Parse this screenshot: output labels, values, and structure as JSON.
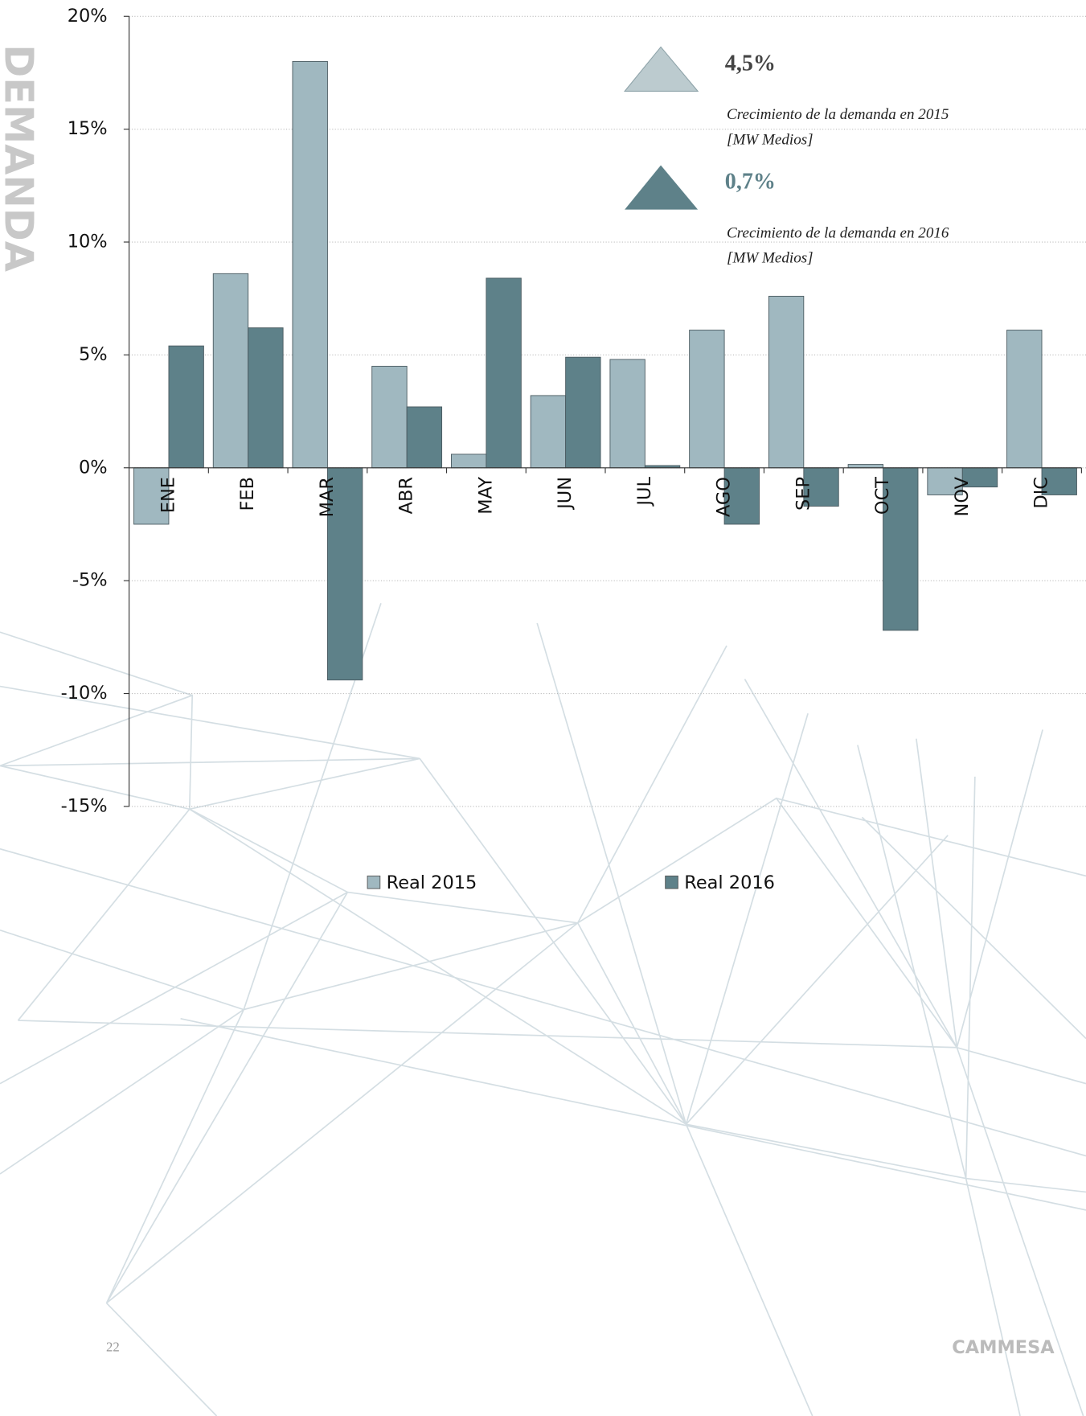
{
  "chart_data": {
    "type": "bar",
    "categories": [
      "ENE",
      "FEB",
      "MAR",
      "ABR",
      "MAY",
      "JUN",
      "JUL",
      "AGO",
      "SEP",
      "OCT",
      "NOV",
      "DIC"
    ],
    "series": [
      {
        "name": "Real 2015",
        "color": "#a0b8c0",
        "values": [
          -2.5,
          8.6,
          18.0,
          4.5,
          0.6,
          3.2,
          4.8,
          6.1,
          7.6,
          0.15,
          -1.2,
          6.1
        ]
      },
      {
        "name": "Real 2016",
        "color": "#5e8189",
        "values": [
          5.4,
          6.2,
          -9.4,
          2.7,
          8.4,
          4.9,
          0.1,
          -2.5,
          -1.7,
          -7.2,
          -0.85,
          -1.2
        ]
      }
    ],
    "ylim": [
      -15,
      20
    ],
    "yticks": [
      {
        "value": -15,
        "label": "-15%"
      },
      {
        "value": -10,
        "label": "-10%"
      },
      {
        "value": -5,
        "label": "-5%"
      },
      {
        "value": 0,
        "label": "0%"
      },
      {
        "value": 5,
        "label": "5%"
      },
      {
        "value": 10,
        "label": "10%"
      },
      {
        "value": 15,
        "label": "15%"
      },
      {
        "value": 20,
        "label": "20%"
      }
    ],
    "grid": true,
    "highlights": [
      {
        "value": "4,5%",
        "caption": [
          "Crecimiento de la demanda en 2015",
          "[MW Medios]"
        ],
        "color": "#bccbcf",
        "text_color": "#444444"
      },
      {
        "value": "0,7%",
        "caption": [
          "Crecimiento de la demanda en 2016",
          "[MW Medios]"
        ],
        "color": "#5e8189",
        "text_color": "#5e8189"
      }
    ]
  },
  "page": {
    "section": "DEMANDA",
    "page_number": "22",
    "brand": "CAMMESA"
  }
}
